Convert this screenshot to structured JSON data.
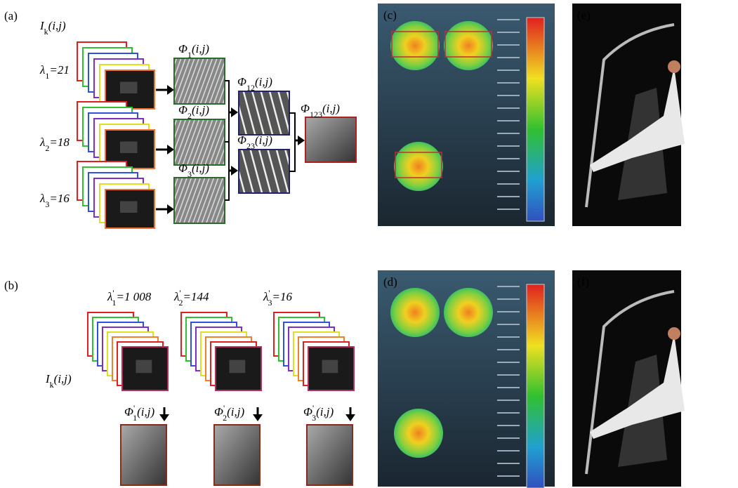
{
  "panel_a": {
    "label": "(a)",
    "input_label": {
      "base": "I",
      "sub": "k",
      "suffix": "(i,j)"
    },
    "wavelengths": [
      {
        "base": "λ",
        "sub": "1",
        "suffix": "=21"
      },
      {
        "base": "λ",
        "sub": "2",
        "suffix": "=18"
      },
      {
        "base": "λ",
        "sub": "3",
        "suffix": "=16"
      }
    ],
    "wrapped_phases": [
      {
        "base": "Φ",
        "sub": "1",
        "suffix": "(i,j)"
      },
      {
        "base": "Φ",
        "sub": "2",
        "suffix": "(i,j)"
      },
      {
        "base": "Φ",
        "sub": "3",
        "suffix": "(i,j)"
      }
    ],
    "pair_phases": [
      {
        "base": "Φ",
        "sub": "12",
        "suffix": "(i,j)"
      },
      {
        "base": "Φ",
        "sub": "23",
        "suffix": "(i,j)"
      }
    ],
    "final_phase": {
      "base": "Φ",
      "sub": "123",
      "suffix": "(i,j)"
    }
  },
  "panel_b": {
    "label": "(b)",
    "input_label": {
      "base": "I",
      "sub": "k",
      "suffix": "(i,j)"
    },
    "wavelengths": [
      {
        "base": "λ",
        "sup": "'",
        "sub": "1",
        "suffix": "=1 008"
      },
      {
        "base": "λ",
        "sup": "'",
        "sub": "2",
        "suffix": "=144"
      },
      {
        "base": "λ",
        "sup": "'",
        "sub": "3",
        "suffix": "=16"
      }
    ],
    "phases": [
      {
        "base": "Φ",
        "sup": "'",
        "sub": "1",
        "suffix": "(i,j)"
      },
      {
        "base": "Φ",
        "sup": "'",
        "sub": "2",
        "suffix": "(i,j)"
      },
      {
        "base": "Φ",
        "sup": "'",
        "sub": "3",
        "suffix": "(i,j)"
      }
    ]
  },
  "panel_c": {
    "label": "(c)"
  },
  "panel_d": {
    "label": "(d)"
  },
  "panel_e": {
    "label": "(e)"
  },
  "panel_f": {
    "label": "(f)"
  }
}
